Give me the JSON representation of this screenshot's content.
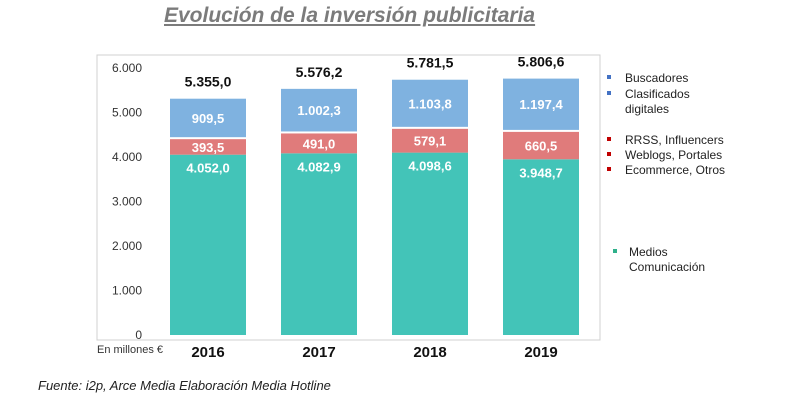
{
  "title": "Evolución de la inversión publicitaria",
  "source": "Fuente: i2p, Arce Media Elaboración Media Hotline",
  "unit_label": "En millones €",
  "colors": {
    "medios": "#43c4b8",
    "rrss": "#e07b7b",
    "buscadores": "#7fb2e0",
    "axis_text": "#333333",
    "legend_dot_blue": "#4472c4",
    "legend_dot_red": "#c00000",
    "legend_dot_green": "#2eb08a"
  },
  "chart_data": {
    "type": "bar",
    "stacked": true,
    "categories": [
      "2016",
      "2017",
      "2018",
      "2019"
    ],
    "ylim": [
      0,
      6000
    ],
    "yticks": [
      "0",
      "1.000",
      "2.000",
      "3.000",
      "4.000",
      "5.000",
      "6.000"
    ],
    "series": [
      {
        "name": "Medios Comunicación",
        "values": [
          4052.0,
          4082.9,
          4098.6,
          3948.7
        ],
        "labels": [
          "4.052,0",
          "4.082,9",
          "4.098,6",
          "3.948,7"
        ]
      },
      {
        "name": "RRSS, Influencers / Weblogs, Portales / Ecommerce, Otros",
        "values": [
          393.5,
          491.0,
          579.1,
          660.5
        ],
        "labels": [
          "393,5",
          "491,0",
          "579,1",
          "660,5"
        ]
      },
      {
        "name": "Buscadores / Clasificados digitales",
        "values": [
          909.5,
          1002.3,
          1103.8,
          1197.4
        ],
        "labels": [
          "909,5",
          "1.002,3",
          "1.103,8",
          "1.197,4"
        ]
      }
    ],
    "totals": [
      "5.355,0",
      "5.576,2",
      "5.781,5",
      "5.806,6"
    ],
    "grid": false,
    "legend_position": "right"
  },
  "legend": {
    "buscadores": "Buscadores",
    "clasificados_1": "Clasificados",
    "clasificados_2": "digitales",
    "rrss": "RRSS, Influencers",
    "weblogs": "Weblogs, Portales",
    "ecommerce": "Ecommerce, Otros",
    "medios_1": "Medios",
    "medios_2": "Comunicación"
  }
}
